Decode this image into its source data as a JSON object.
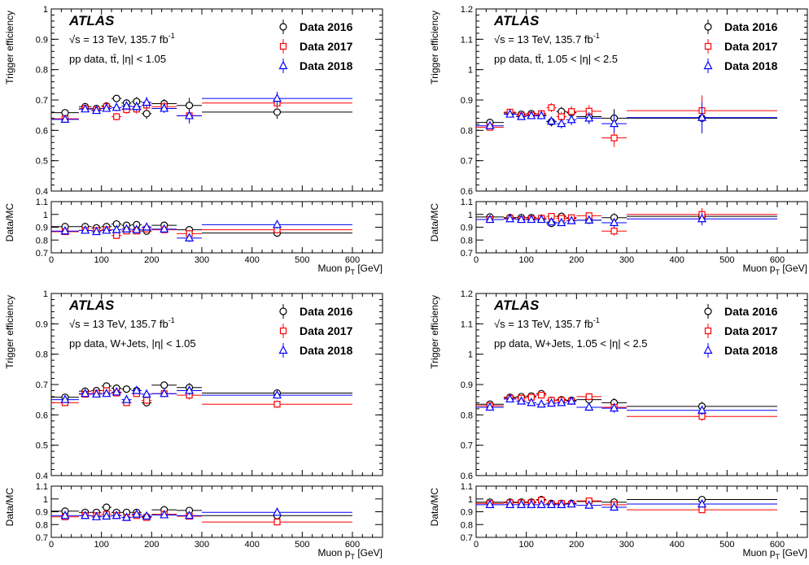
{
  "chart_data": [
    {
      "type": "scatter",
      "atlas_label": "ATLAS",
      "energy_label": "√s = 13 TeV, 135.7 fb",
      "energy_sup": "-1",
      "region_label": "pp data, tt̄, |η| < 1.05",
      "ylabel": "Trigger efficiency",
      "ratio_ylabel": "Data/MC",
      "xlabel_main": "Muon p",
      "xlabel_sub": "T",
      "xlabel_unit": " [GeV]",
      "xlim": [
        0,
        660
      ],
      "ylim": [
        0.4,
        1.0
      ],
      "ratio_ylim": [
        0.7,
        1.1
      ],
      "x_ticks": [
        0,
        100,
        200,
        300,
        400,
        500,
        600
      ],
      "y_ticks": [
        0.4,
        0.5,
        0.6,
        0.7,
        0.8,
        0.9,
        1.0
      ],
      "y_tick_labels": [
        "0.4",
        "0.5",
        "0.6",
        "0.7",
        "0.8",
        "0.9",
        "1"
      ],
      "ratio_ticks": [
        0.7,
        0.8,
        0.9,
        1.0,
        1.1
      ],
      "ratio_tick_labels": [
        "0.7",
        "0.8",
        "0.9",
        "1",
        "1.1"
      ],
      "legend_position": "top-right",
      "bins": [
        [
          0,
          55
        ],
        [
          55,
          80
        ],
        [
          80,
          100
        ],
        [
          100,
          120
        ],
        [
          120,
          140
        ],
        [
          140,
          160
        ],
        [
          160,
          180
        ],
        [
          180,
          200
        ],
        [
          200,
          250
        ],
        [
          250,
          300
        ],
        [
          300,
          600
        ]
      ],
      "series": [
        {
          "name": "Data 2016",
          "marker": "circle",
          "color": "#000000",
          "values": [
            0.658,
            0.678,
            0.672,
            0.68,
            0.705,
            0.69,
            0.695,
            0.655,
            0.688,
            0.682,
            0.66
          ],
          "errors": [
            0.007,
            0.008,
            0.008,
            0.009,
            0.012,
            0.013,
            0.015,
            0.018,
            0.015,
            0.025,
            0.022
          ],
          "ratio": [
            0.905,
            0.905,
            0.895,
            0.905,
            0.925,
            0.915,
            0.92,
            0.87,
            0.915,
            0.88,
            0.855
          ],
          "ratio_errors": [
            0.01,
            0.01,
            0.01,
            0.012,
            0.015,
            0.015,
            0.018,
            0.022,
            0.02,
            0.03,
            0.03
          ]
        },
        {
          "name": "Data 2017",
          "marker": "square",
          "color": "#ff0000",
          "values": [
            0.638,
            0.672,
            0.668,
            0.678,
            0.645,
            0.668,
            0.67,
            0.683,
            0.678,
            0.648,
            0.69
          ],
          "errors": [
            0.007,
            0.008,
            0.008,
            0.009,
            0.012,
            0.013,
            0.015,
            0.018,
            0.015,
            0.025,
            0.022
          ],
          "ratio": [
            0.865,
            0.875,
            0.875,
            0.88,
            0.835,
            0.87,
            0.87,
            0.885,
            0.88,
            0.85,
            0.88
          ],
          "ratio_errors": [
            0.01,
            0.01,
            0.01,
            0.012,
            0.015,
            0.015,
            0.018,
            0.022,
            0.02,
            0.03,
            0.03
          ]
        },
        {
          "name": "Data 2018",
          "marker": "triangle",
          "color": "#0000ff",
          "values": [
            0.636,
            0.67,
            0.665,
            0.672,
            0.675,
            0.68,
            0.678,
            0.692,
            0.672,
            0.648,
            0.705
          ],
          "errors": [
            0.007,
            0.008,
            0.008,
            0.009,
            0.012,
            0.013,
            0.015,
            0.018,
            0.015,
            0.025,
            0.022
          ],
          "ratio": [
            0.87,
            0.875,
            0.865,
            0.875,
            0.88,
            0.885,
            0.88,
            0.9,
            0.885,
            0.815,
            0.92
          ],
          "ratio_errors": [
            0.01,
            0.01,
            0.01,
            0.012,
            0.015,
            0.015,
            0.018,
            0.022,
            0.02,
            0.03,
            0.03
          ]
        }
      ]
    },
    {
      "type": "scatter",
      "atlas_label": "ATLAS",
      "energy_label": "√s = 13 TeV, 135.7 fb",
      "energy_sup": "-1",
      "region_label": "pp data, tt̄, 1.05 < |η| < 2.5",
      "ylabel": "Trigger efficiency",
      "ratio_ylabel": "Data/MC",
      "xlabel_main": "Muon p",
      "xlabel_sub": "T",
      "xlabel_unit": " [GeV]",
      "xlim": [
        0,
        660
      ],
      "ylim": [
        0.6,
        1.2
      ],
      "ratio_ylim": [
        0.7,
        1.1
      ],
      "x_ticks": [
        0,
        100,
        200,
        300,
        400,
        500,
        600
      ],
      "y_ticks": [
        0.6,
        0.7,
        0.8,
        0.9,
        1.0,
        1.1,
        1.2
      ],
      "y_tick_labels": [
        "0.6",
        "0.7",
        "0.8",
        "0.9",
        "1",
        "1.1",
        "1.2"
      ],
      "ratio_ticks": [
        0.7,
        0.8,
        0.9,
        1.0,
        1.1
      ],
      "ratio_tick_labels": [
        "0.7",
        "0.8",
        "0.9",
        "1",
        "1.1"
      ],
      "legend_position": "top-right",
      "bins": [
        [
          0,
          55
        ],
        [
          55,
          80
        ],
        [
          80,
          100
        ],
        [
          100,
          120
        ],
        [
          120,
          140
        ],
        [
          140,
          160
        ],
        [
          160,
          180
        ],
        [
          180,
          200
        ],
        [
          200,
          250
        ],
        [
          250,
          300
        ],
        [
          300,
          600
        ]
      ],
      "series": [
        {
          "name": "Data 2016",
          "marker": "circle",
          "color": "#000000",
          "values": [
            0.826,
            0.857,
            0.853,
            0.855,
            0.85,
            0.828,
            0.862,
            0.858,
            0.845,
            0.84,
            0.84
          ],
          "errors": [
            0.008,
            0.009,
            0.009,
            0.01,
            0.012,
            0.015,
            0.016,
            0.018,
            0.02,
            0.03,
            0.05
          ],
          "ratio": [
            0.98,
            0.975,
            0.975,
            0.975,
            0.97,
            0.93,
            0.985,
            0.97,
            0.955,
            0.975,
            0.985
          ],
          "ratio_errors": [
            0.01,
            0.01,
            0.01,
            0.012,
            0.015,
            0.018,
            0.02,
            0.022,
            0.025,
            0.035,
            0.05
          ]
        },
        {
          "name": "Data 2017",
          "marker": "square",
          "color": "#ff0000",
          "values": [
            0.81,
            0.86,
            0.848,
            0.85,
            0.855,
            0.875,
            0.845,
            0.862,
            0.863,
            0.775,
            0.865
          ],
          "errors": [
            0.008,
            0.009,
            0.009,
            0.01,
            0.012,
            0.015,
            0.016,
            0.018,
            0.02,
            0.03,
            0.05
          ],
          "ratio": [
            0.96,
            0.97,
            0.96,
            0.965,
            0.97,
            0.985,
            0.97,
            0.975,
            0.99,
            0.87,
            1.0
          ],
          "ratio_errors": [
            0.01,
            0.01,
            0.01,
            0.012,
            0.015,
            0.018,
            0.02,
            0.022,
            0.025,
            0.035,
            0.05
          ]
        },
        {
          "name": "Data 2018",
          "marker": "triangle",
          "color": "#0000ff",
          "values": [
            0.815,
            0.853,
            0.845,
            0.848,
            0.848,
            0.83,
            0.822,
            0.835,
            0.84,
            0.822,
            0.842
          ],
          "errors": [
            0.008,
            0.009,
            0.009,
            0.01,
            0.012,
            0.015,
            0.016,
            0.018,
            0.02,
            0.03,
            0.05
          ],
          "ratio": [
            0.96,
            0.965,
            0.96,
            0.96,
            0.96,
            0.94,
            0.935,
            0.95,
            0.955,
            0.935,
            0.965
          ],
          "ratio_errors": [
            0.01,
            0.01,
            0.01,
            0.012,
            0.015,
            0.018,
            0.02,
            0.022,
            0.025,
            0.035,
            0.05
          ]
        }
      ]
    },
    {
      "type": "scatter",
      "atlas_label": "ATLAS",
      "energy_label": "√s = 13 TeV, 135.7 fb",
      "energy_sup": "-1",
      "region_label": "pp data, W+Jets, |η| < 1.05",
      "ylabel": "Trigger efficiency",
      "ratio_ylabel": "Data/MC",
      "xlabel_main": "Muon p",
      "xlabel_sub": "T",
      "xlabel_unit": " [GeV]",
      "xlim": [
        0,
        660
      ],
      "ylim": [
        0.4,
        1.0
      ],
      "ratio_ylim": [
        0.7,
        1.1
      ],
      "x_ticks": [
        0,
        100,
        200,
        300,
        400,
        500,
        600
      ],
      "y_ticks": [
        0.4,
        0.5,
        0.6,
        0.7,
        0.8,
        0.9,
        1.0
      ],
      "y_tick_labels": [
        "0.4",
        "0.5",
        "0.6",
        "0.7",
        "0.8",
        "0.9",
        "1"
      ],
      "ratio_ticks": [
        0.7,
        0.8,
        0.9,
        1.0,
        1.1
      ],
      "ratio_tick_labels": [
        "0.7",
        "0.8",
        "0.9",
        "1",
        "1.1"
      ],
      "legend_position": "top-right",
      "bins": [
        [
          0,
          55
        ],
        [
          55,
          80
        ],
        [
          80,
          100
        ],
        [
          100,
          120
        ],
        [
          120,
          140
        ],
        [
          140,
          160
        ],
        [
          160,
          180
        ],
        [
          180,
          200
        ],
        [
          200,
          250
        ],
        [
          250,
          300
        ],
        [
          300,
          600
        ]
      ],
      "series": [
        {
          "name": "Data 2016",
          "marker": "circle",
          "color": "#000000",
          "values": [
            0.658,
            0.678,
            0.68,
            0.695,
            0.688,
            0.685,
            0.68,
            0.64,
            0.698,
            0.69,
            0.672
          ],
          "errors": [
            0.005,
            0.006,
            0.006,
            0.007,
            0.008,
            0.009,
            0.01,
            0.012,
            0.01,
            0.015,
            0.012
          ],
          "ratio": [
            0.905,
            0.895,
            0.895,
            0.935,
            0.895,
            0.895,
            0.895,
            0.86,
            0.915,
            0.91,
            0.87
          ],
          "ratio_errors": [
            0.008,
            0.008,
            0.008,
            0.01,
            0.01,
            0.012,
            0.012,
            0.015,
            0.012,
            0.018,
            0.015
          ]
        },
        {
          "name": "Data 2017",
          "marker": "square",
          "color": "#ff0000",
          "values": [
            0.64,
            0.668,
            0.672,
            0.68,
            0.672,
            0.64,
            0.67,
            0.648,
            0.67,
            0.665,
            0.635
          ],
          "errors": [
            0.005,
            0.006,
            0.006,
            0.007,
            0.008,
            0.009,
            0.01,
            0.012,
            0.01,
            0.015,
            0.012
          ],
          "ratio": [
            0.86,
            0.87,
            0.87,
            0.88,
            0.87,
            0.855,
            0.87,
            0.855,
            0.88,
            0.865,
            0.82
          ],
          "ratio_errors": [
            0.008,
            0.008,
            0.008,
            0.01,
            0.01,
            0.012,
            0.012,
            0.015,
            0.012,
            0.018,
            0.015
          ]
        },
        {
          "name": "Data 2018",
          "marker": "triangle",
          "color": "#0000ff",
          "values": [
            0.65,
            0.67,
            0.668,
            0.67,
            0.675,
            0.65,
            0.68,
            0.668,
            0.67,
            0.68,
            0.665
          ],
          "errors": [
            0.005,
            0.006,
            0.006,
            0.007,
            0.008,
            0.009,
            0.01,
            0.012,
            0.01,
            0.015,
            0.012
          ],
          "ratio": [
            0.87,
            0.87,
            0.86,
            0.865,
            0.87,
            0.855,
            0.88,
            0.865,
            0.875,
            0.87,
            0.895
          ],
          "ratio_errors": [
            0.008,
            0.008,
            0.008,
            0.01,
            0.01,
            0.012,
            0.012,
            0.015,
            0.012,
            0.018,
            0.015
          ]
        }
      ]
    },
    {
      "type": "scatter",
      "atlas_label": "ATLAS",
      "energy_label": "√s = 13 TeV, 135.7 fb",
      "energy_sup": "-1",
      "region_label": "pp data, W+Jets, 1.05 < |η| < 2.5",
      "ylabel": "Trigger efficiency",
      "ratio_ylabel": "Data/MC",
      "xlabel_main": "Muon p",
      "xlabel_sub": "T",
      "xlabel_unit": " [GeV]",
      "xlim": [
        0,
        660
      ],
      "ylim": [
        0.6,
        1.2
      ],
      "ratio_ylim": [
        0.7,
        1.1
      ],
      "x_ticks": [
        0,
        100,
        200,
        300,
        400,
        500,
        600
      ],
      "y_ticks": [
        0.6,
        0.7,
        0.8,
        0.9,
        1.0,
        1.1,
        1.2
      ],
      "y_tick_labels": [
        "0.6",
        "0.7",
        "0.8",
        "0.9",
        "1",
        "1.1",
        "1.2"
      ],
      "ratio_ticks": [
        0.7,
        0.8,
        0.9,
        1.0,
        1.1
      ],
      "ratio_tick_labels": [
        "0.7",
        "0.8",
        "0.9",
        "1",
        "1.1"
      ],
      "legend_position": "top-right",
      "bins": [
        [
          0,
          55
        ],
        [
          55,
          80
        ],
        [
          80,
          100
        ],
        [
          100,
          120
        ],
        [
          120,
          140
        ],
        [
          140,
          160
        ],
        [
          160,
          180
        ],
        [
          180,
          200
        ],
        [
          200,
          250
        ],
        [
          250,
          300
        ],
        [
          300,
          600
        ]
      ],
      "series": [
        {
          "name": "Data 2016",
          "marker": "circle",
          "color": "#000000",
          "values": [
            0.835,
            0.858,
            0.86,
            0.862,
            0.87,
            0.848,
            0.85,
            0.848,
            0.85,
            0.84,
            0.828
          ],
          "errors": [
            0.006,
            0.007,
            0.007,
            0.008,
            0.009,
            0.01,
            0.01,
            0.012,
            0.012,
            0.015,
            0.015
          ],
          "ratio": [
            0.975,
            0.975,
            0.975,
            0.975,
            0.995,
            0.965,
            0.965,
            0.965,
            0.98,
            0.975,
            0.995
          ],
          "ratio_errors": [
            0.008,
            0.008,
            0.008,
            0.009,
            0.01,
            0.012,
            0.012,
            0.014,
            0.014,
            0.018,
            0.018
          ]
        },
        {
          "name": "Data 2017",
          "marker": "square",
          "color": "#ff0000",
          "values": [
            0.83,
            0.855,
            0.855,
            0.858,
            0.865,
            0.848,
            0.848,
            0.845,
            0.86,
            0.825,
            0.795
          ],
          "errors": [
            0.006,
            0.007,
            0.007,
            0.008,
            0.009,
            0.01,
            0.01,
            0.012,
            0.012,
            0.015,
            0.015
          ],
          "ratio": [
            0.965,
            0.97,
            0.97,
            0.97,
            0.99,
            0.96,
            0.965,
            0.96,
            0.985,
            0.955,
            0.915
          ],
          "ratio_errors": [
            0.008,
            0.008,
            0.008,
            0.009,
            0.01,
            0.012,
            0.012,
            0.014,
            0.014,
            0.018,
            0.018
          ]
        },
        {
          "name": "Data 2018",
          "marker": "triangle",
          "color": "#0000ff",
          "values": [
            0.825,
            0.852,
            0.845,
            0.84,
            0.835,
            0.838,
            0.84,
            0.845,
            0.825,
            0.822,
            0.815
          ],
          "errors": [
            0.006,
            0.007,
            0.007,
            0.008,
            0.009,
            0.01,
            0.01,
            0.012,
            0.012,
            0.015,
            0.015
          ],
          "ratio": [
            0.955,
            0.955,
            0.955,
            0.955,
            0.955,
            0.955,
            0.955,
            0.96,
            0.95,
            0.935,
            0.96
          ],
          "ratio_errors": [
            0.008,
            0.008,
            0.008,
            0.009,
            0.01,
            0.012,
            0.012,
            0.014,
            0.014,
            0.018,
            0.018
          ]
        }
      ]
    }
  ]
}
